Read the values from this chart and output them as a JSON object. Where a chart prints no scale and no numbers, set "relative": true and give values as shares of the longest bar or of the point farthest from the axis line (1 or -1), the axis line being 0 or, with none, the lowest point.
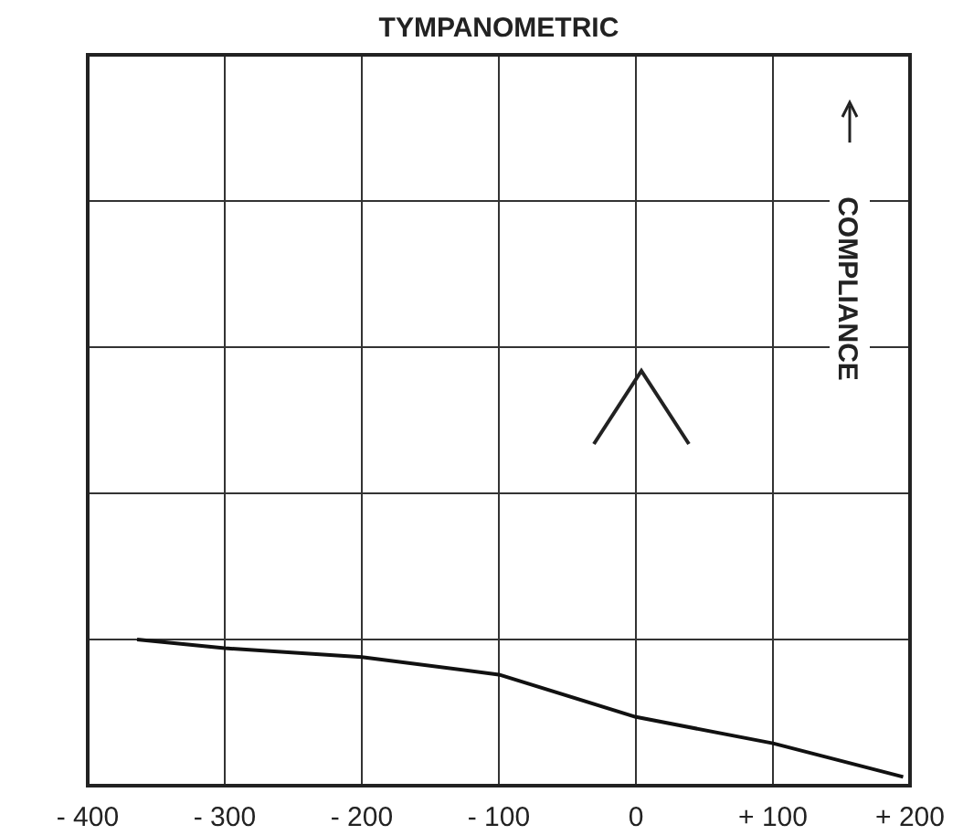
{
  "chart_data": {
    "type": "line",
    "title": "TYMPANOMETRIC",
    "annotations": [
      "COMPLIANCE"
    ],
    "relative": true,
    "x": [
      -364,
      -300,
      -200,
      -100,
      0,
      100,
      195
    ],
    "series": [
      {
        "color": "#111111",
        "values": [
          1,
          0.94,
          0.88,
          0.76,
          0.47,
          0.29,
          0.06
        ]
      }
    ],
    "xlim": [
      -400,
      200
    ],
    "xticks": [
      {
        "value": -400,
        "label": "- 400"
      },
      {
        "value": -300,
        "label": "- 300"
      },
      {
        "value": -200,
        "label": "- 200"
      },
      {
        "value": -100,
        "label": "- 100"
      },
      0,
      {
        "value": 100,
        "label": "+ 100"
      },
      {
        "value": 200,
        "label": "+ 200"
      }
    ],
    "grid": true,
    "marker": "none",
    "line_style": "solid"
  }
}
